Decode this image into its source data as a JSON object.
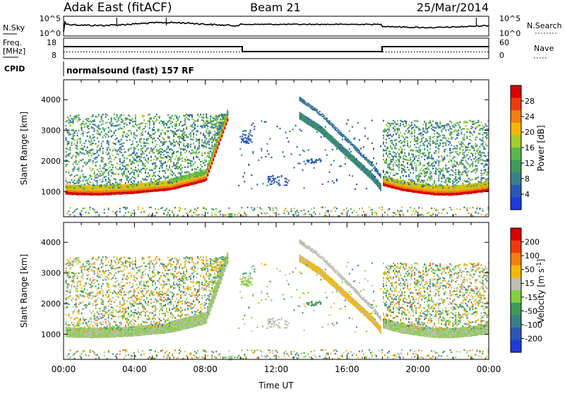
{
  "header": {
    "radar": "Adak East (fitACF)",
    "beam": "Beam 21",
    "date": "25/Mar/2014"
  },
  "panels": {
    "noise": {
      "left_label": "N.Sky",
      "left_ticks": [
        "10^5",
        "10^0"
      ],
      "right_ticks": [
        "10^5",
        "10^0"
      ],
      "right_label": "N.Search"
    },
    "freq": {
      "left_label_1": "Freq.",
      "left_label_2": "[MHz]",
      "left_ticks": [
        "18",
        "8"
      ],
      "right_ticks": [
        "60",
        "0"
      ],
      "right_label": "Nave"
    },
    "cpid": {
      "label": "CPID",
      "mode": "normalsound (fast) 157 RF"
    }
  },
  "chart_data": [
    {
      "type": "heatmap",
      "name": "power",
      "xlabel": "Time UT",
      "ylabel": "Slant Range [km]",
      "xlim": [
        0,
        24
      ],
      "x_ticks": [
        "00:00",
        "04:00",
        "08:00",
        "12:00",
        "16:00",
        "20:00",
        "00:00"
      ],
      "ylim": [
        180,
        4650
      ],
      "y_ticks": [
        1000,
        2000,
        3000,
        4000
      ],
      "colorbar": {
        "label": "Power [dB]",
        "ticks": [
          4,
          8,
          12,
          16,
          20,
          24,
          28
        ],
        "range": [
          0,
          32
        ],
        "colors": [
          "#1e3cdc",
          "#2a58b4",
          "#38808a",
          "#3e9a5a",
          "#5ab84a",
          "#a0cc2e",
          "#f6b800",
          "#f47f10",
          "#ee3a10",
          "#d80000"
        ]
      },
      "features": [
        {
          "desc": "ground scatter band",
          "x": [
            0,
            0.5,
            2,
            4,
            6,
            8,
            9.3
          ],
          "y": [
            1000,
            980,
            960,
            1020,
            1130,
            1420,
            3500
          ]
        },
        {
          "desc": "ground scatter band",
          "x": [
            18,
            19,
            20,
            21,
            22,
            23,
            24
          ],
          "y": [
            1280,
            1120,
            1030,
            960,
            960,
            1020,
            1100
          ]
        },
        {
          "desc": "descending trace",
          "x": [
            13.3,
            14.5,
            16,
            17.4,
            17.9
          ],
          "y": [
            3500,
            3050,
            2250,
            1500,
            1150
          ]
        }
      ]
    },
    {
      "type": "heatmap",
      "name": "velocity",
      "xlabel": "Time UT",
      "ylabel": "Slant Range [km]",
      "xlim": [
        0,
        24
      ],
      "x_ticks": [
        "00:00",
        "04:00",
        "08:00",
        "12:00",
        "16:00",
        "20:00",
        "00:00"
      ],
      "ylim": [
        180,
        4650
      ],
      "y_ticks": [
        1000,
        2000,
        3000,
        4000
      ],
      "colorbar": {
        "label": "Velocity [m s^-1]",
        "ticks": [
          200,
          100,
          50,
          15,
          -15,
          -50,
          -100,
          -200
        ],
        "range": [
          -250,
          250
        ],
        "colors": [
          "#1e3cdc",
          "#2a58b4",
          "#38808a",
          "#3e9a5a",
          "#82d040",
          "#bebeb4",
          "#f6b800",
          "#f47f10",
          "#ee3a10",
          "#d80000"
        ]
      }
    }
  ]
}
